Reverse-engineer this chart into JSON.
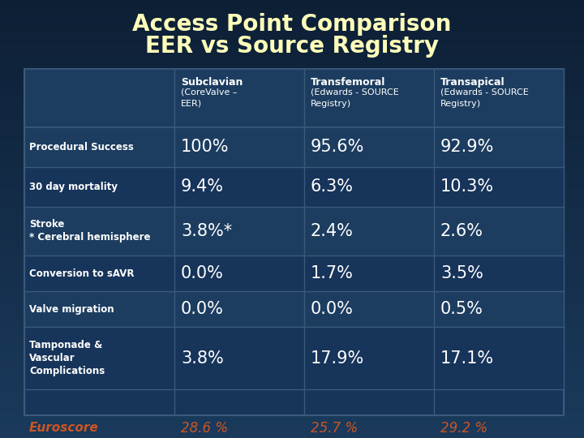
{
  "title_line1": "Access Point Comparison",
  "title_line2": "EER vs Source Registry",
  "title_color": "#FFFFBB",
  "bg_color_top": "#0d1f35",
  "bg_color_bottom": "#1a3a5c",
  "row_color_light": "#1e3f6a",
  "row_color_dark": "#17355a",
  "border_color": "#3a5a7a",
  "header_text_color": "#ffffff",
  "cell_value_color": "#ffffff",
  "euroscore_color": "#cc5522",
  "col_headers": [
    [
      "Subclavian",
      "(CoreValve –",
      "EER)"
    ],
    [
      "Transfemoral",
      "(Edwards - SOURCE",
      "Registry)"
    ],
    [
      "Transapical",
      "(Edwards - SOURCE",
      "Registry)"
    ]
  ],
  "row_label_single": [
    "Procedural Success",
    "30 day mortality",
    "Stroke\n* Cerebral hemisphere",
    "Conversion to sAVR",
    "Valve migration",
    "Tamponade &\nVascular\nComplications"
  ],
  "data": [
    [
      "100%",
      "95.6%",
      "92.9%"
    ],
    [
      "9.4%",
      "6.3%",
      "10.3%"
    ],
    [
      "3.8%*",
      "2.4%",
      "2.6%"
    ],
    [
      "0.0%",
      "1.7%",
      "3.5%"
    ],
    [
      "0.0%",
      "0.0%",
      "0.5%"
    ],
    [
      "3.8%",
      "17.9%",
      "17.1%"
    ]
  ],
  "euroscore_label": "Euroscore",
  "euroscore_values": [
    "28.6 %",
    "25.7 %",
    "29.2 %"
  ]
}
